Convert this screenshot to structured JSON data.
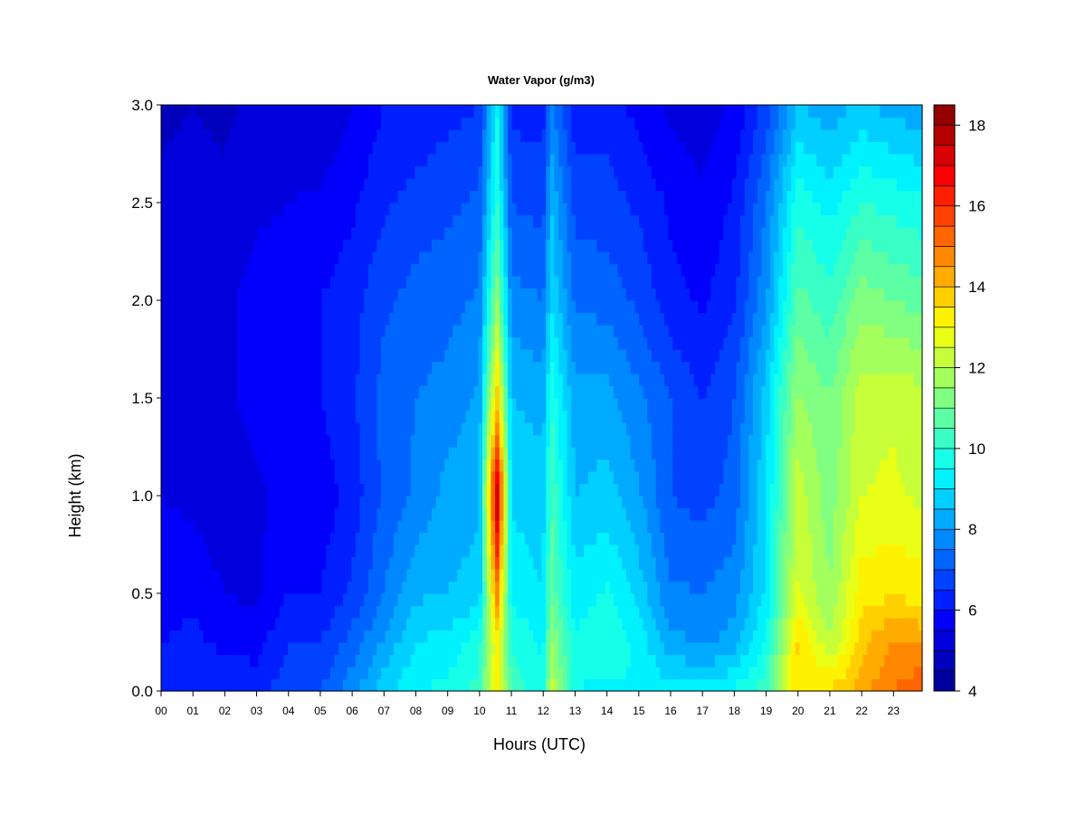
{
  "chart_data": {
    "type": "heatmap",
    "title": "Water Vapor (g/m3)",
    "xlabel": "Hours (UTC)",
    "ylabel": "Height (km)",
    "xlim": [
      0,
      23.9
    ],
    "ylim": [
      0,
      3.0
    ],
    "x_tick_labels": [
      "00",
      "01",
      "02",
      "03",
      "04",
      "05",
      "06",
      "07",
      "08",
      "09",
      "10",
      "11",
      "12",
      "13",
      "14",
      "15",
      "16",
      "17",
      "18",
      "19",
      "20",
      "21",
      "22",
      "23"
    ],
    "y_tick_labels": [
      "0.0",
      "0.5",
      "1.0",
      "1.5",
      "2.0",
      "2.5",
      "3.0"
    ],
    "y_ticks": [
      0.0,
      0.5,
      1.0,
      1.5,
      2.0,
      2.5,
      3.0
    ],
    "colorbar": {
      "range": [
        4,
        18.5
      ],
      "levels": [
        4,
        4.5,
        5,
        5.5,
        6,
        6.5,
        7,
        7.5,
        8,
        8.5,
        9,
        9.5,
        10,
        10.5,
        11,
        11.5,
        12,
        12.5,
        13,
        13.5,
        14,
        14.5,
        15,
        15.5,
        16,
        16.5,
        17,
        17.5,
        18,
        18.5
      ],
      "tick_values": [
        4,
        6,
        8,
        10,
        12,
        14,
        16,
        18
      ],
      "tick_labels": [
        "4",
        "6",
        "8",
        "10",
        "12",
        "14",
        "16",
        "18"
      ]
    },
    "vertical_profile_hours": [
      0,
      1,
      2,
      3,
      4,
      5,
      6,
      7,
      8,
      9,
      10,
      10.55,
      11,
      12,
      12.25,
      13,
      14,
      15,
      16,
      17,
      18,
      19,
      20,
      21,
      22,
      23,
      23.9
    ],
    "profile_heights_km": [
      0.0,
      0.25,
      0.5,
      1.0,
      1.5,
      2.0,
      2.5,
      3.0
    ],
    "values": [
      [
        6.3,
        6.0,
        5.7,
        5.5,
        5.5,
        5.3,
        5.1,
        4.9
      ],
      [
        6.5,
        6.2,
        5.8,
        5.4,
        5.5,
        5.4,
        5.2,
        5.0
      ],
      [
        6.5,
        5.8,
        5.5,
        5.2,
        5.4,
        5.4,
        5.1,
        4.9
      ],
      [
        6.3,
        5.8,
        5.4,
        5.4,
        5.7,
        5.7,
        5.4,
        5.1
      ],
      [
        6.8,
        6.5,
        6.0,
        5.7,
        5.9,
        5.8,
        5.5,
        5.1
      ],
      [
        7.0,
        6.5,
        6.0,
        5.7,
        6.0,
        6.0,
        5.6,
        5.0
      ],
      [
        7.8,
        7.2,
        6.6,
        6.2,
        6.4,
        6.3,
        5.9,
        5.5
      ],
      [
        8.8,
        8.1,
        7.5,
        7.1,
        7.2,
        6.9,
        6.4,
        6.0
      ],
      [
        9.5,
        9.0,
        8.4,
        7.6,
        7.5,
        7.2,
        6.7,
        6.1
      ],
      [
        9.6,
        9.2,
        8.5,
        8.2,
        7.7,
        7.3,
        6.9,
        6.3
      ],
      [
        10.2,
        9.8,
        8.7,
        8.4,
        8.1,
        7.6,
        7.1,
        6.5
      ],
      [
        13.5,
        13.2,
        14.8,
        17.8,
        13.8,
        11.5,
        10.0,
        9.5
      ],
      [
        10.3,
        10.0,
        9.3,
        8.9,
        8.5,
        7.7,
        7.0,
        6.3
      ],
      [
        9.6,
        9.4,
        9.0,
        8.8,
        8.3,
        7.5,
        6.8,
        6.3
      ],
      [
        12.2,
        11.6,
        10.9,
        10.5,
        9.9,
        9.0,
        8.5,
        7.6
      ],
      [
        9.5,
        9.6,
        9.2,
        8.5,
        8.2,
        7.4,
        6.8,
        6.2
      ],
      [
        9.4,
        10.0,
        9.6,
        8.7,
        8.2,
        7.3,
        6.7,
        6.3
      ],
      [
        9.5,
        9.3,
        8.8,
        8.1,
        7.6,
        6.9,
        6.4,
        5.8
      ],
      [
        9.2,
        8.2,
        7.6,
        7.0,
        7.0,
        6.2,
        5.9,
        5.4
      ],
      [
        9.2,
        7.9,
        7.5,
        6.8,
        6.5,
        5.9,
        5.6,
        5.2
      ],
      [
        9.6,
        8.2,
        7.8,
        7.2,
        7.0,
        6.4,
        6.1,
        5.6
      ],
      [
        10.3,
        9.6,
        9.1,
        8.9,
        8.8,
        7.9,
        7.5,
        6.7
      ],
      [
        13.5,
        13.6,
        12.6,
        12.3,
        11.6,
        10.7,
        9.8,
        8.5
      ],
      [
        13.6,
        12.0,
        11.5,
        11.2,
        11.0,
        10.2,
        9.3,
        8.2
      ],
      [
        14.3,
        13.8,
        13.3,
        12.5,
        12.3,
        11.3,
        10.0,
        8.6
      ],
      [
        15.0,
        14.6,
        13.4,
        12.6,
        12.4,
        11.0,
        9.8,
        8.3
      ],
      [
        15.5,
        14.4,
        13.3,
        12.4,
        12.2,
        10.8,
        9.6,
        8.1
      ]
    ]
  }
}
